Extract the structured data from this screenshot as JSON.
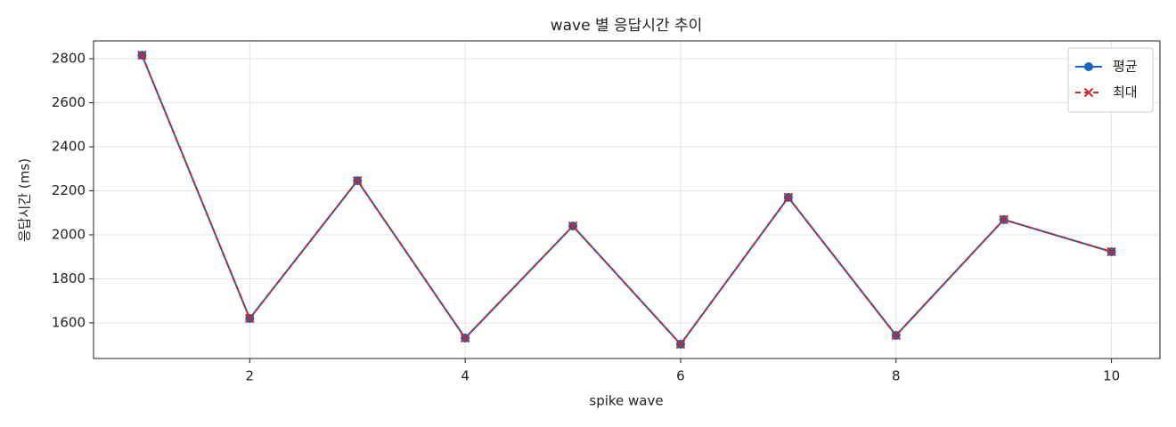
{
  "chart_data": {
    "type": "line",
    "title": "wave 별 응답시간 추이",
    "xlabel": "spike wave",
    "ylabel": "응답시간 (ms)",
    "x": [
      1,
      2,
      3,
      4,
      5,
      6,
      7,
      8,
      9,
      10
    ],
    "series": [
      {
        "name": "평균",
        "color": "#1565c0",
        "marker": "o",
        "linestyle": "solid",
        "values": [
          2816,
          1620,
          2246,
          1531,
          2040,
          1503,
          2170,
          1543,
          2069,
          1923
        ]
      },
      {
        "name": "최대",
        "color": "#c62828",
        "marker": "x",
        "linestyle": "dashed",
        "values": [
          2816,
          1620,
          2246,
          1531,
          2040,
          1503,
          2170,
          1543,
          2069,
          1923
        ]
      }
    ],
    "xlim": [
      0.55,
      10.45
    ],
    "ylim": [
      1438,
      2881
    ],
    "xticks": [
      2,
      4,
      6,
      8,
      10
    ],
    "yticks": [
      1600,
      1800,
      2000,
      2200,
      2400,
      2600,
      2800
    ],
    "grid": true,
    "legend": "upper right"
  }
}
